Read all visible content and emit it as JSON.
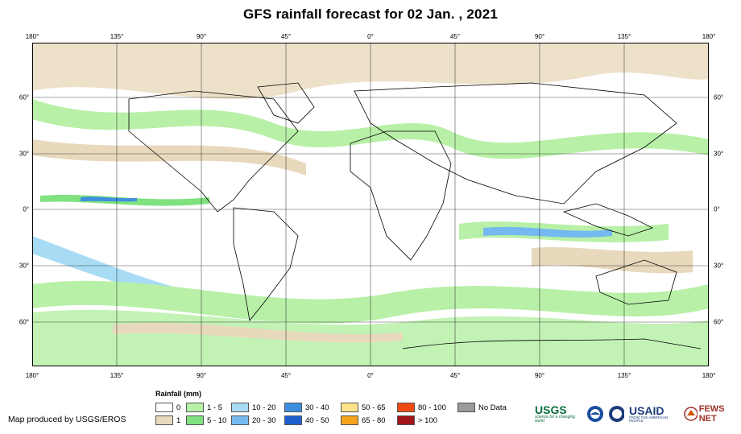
{
  "title": "GFS rainfall forecast for 02 Jan. , 2021",
  "lon_labels": [
    "180°",
    "135°",
    "90°",
    "45°",
    "0°",
    "45°",
    "90°",
    "135°",
    "180°"
  ],
  "lat_labels": [
    "60°",
    "30°",
    "0°",
    "30°",
    "60°"
  ],
  "legend": {
    "title": "Rainfall (mm)",
    "items": [
      {
        "label": "0",
        "color": "#ffffff"
      },
      {
        "label": "1",
        "color": "#e8d9bd"
      },
      {
        "label": "1 - 5",
        "color": "#b8f0a8"
      },
      {
        "label": "5 - 10",
        "color": "#7fe27f"
      },
      {
        "label": "10 - 20",
        "color": "#a8dcf5"
      },
      {
        "label": "20 - 30",
        "color": "#74b9f0"
      },
      {
        "label": "30 - 40",
        "color": "#3f8fe0"
      },
      {
        "label": "40 - 50",
        "color": "#1f5fd0"
      },
      {
        "label": "50 - 65",
        "color": "#fde38a"
      },
      {
        "label": "65 - 80",
        "color": "#f7a21b"
      },
      {
        "label": "80 - 100",
        "color": "#ee4a12"
      },
      {
        "label": "> 100",
        "color": "#a3161a"
      },
      {
        "label": "No Data",
        "color": "#9b9b9b"
      }
    ]
  },
  "credit": "Map produced by USGS/EROS",
  "logos": {
    "usgs": "USGS",
    "usgs_tagline": "science for a changing world",
    "usaid": "USAID",
    "usaid_tagline": "FROM THE AMERICAN PEOPLE",
    "fewsnet": "FEWS NET"
  }
}
